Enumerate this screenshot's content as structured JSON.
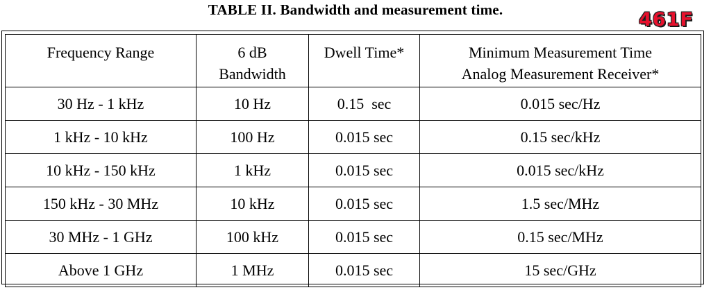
{
  "title": "TABLE II.  Bandwidth and measurement time.",
  "badge": "461F",
  "table": {
    "headers": [
      {
        "lines": [
          "Frequency Range"
        ]
      },
      {
        "lines": [
          "6 dB",
          "Bandwidth"
        ]
      },
      {
        "lines": [
          "Dwell Time*"
        ]
      },
      {
        "lines": [
          "Minimum Measurement Time",
          "Analog Measurement Receiver*"
        ]
      }
    ],
    "rows": [
      [
        "30 Hz - 1 kHz",
        "10 Hz",
        "0.15  sec",
        "0.015 sec/Hz"
      ],
      [
        "1 kHz - 10 kHz",
        "100 Hz",
        "0.015 sec",
        "0.15 sec/kHz"
      ],
      [
        "10 kHz - 150 kHz",
        "1 kHz",
        "0.015 sec",
        "0.015 sec/kHz"
      ],
      [
        "150 kHz - 30 MHz",
        "10 kHz",
        "0.015 sec",
        "1.5 sec/MHz"
      ],
      [
        "30 MHz - 1 GHz",
        "100 kHz",
        "0.015 sec",
        "0.15 sec/MHz"
      ],
      [
        "Above 1 GHz",
        "1 MHz",
        "0.015 sec",
        "15 sec/GHz"
      ]
    ]
  }
}
